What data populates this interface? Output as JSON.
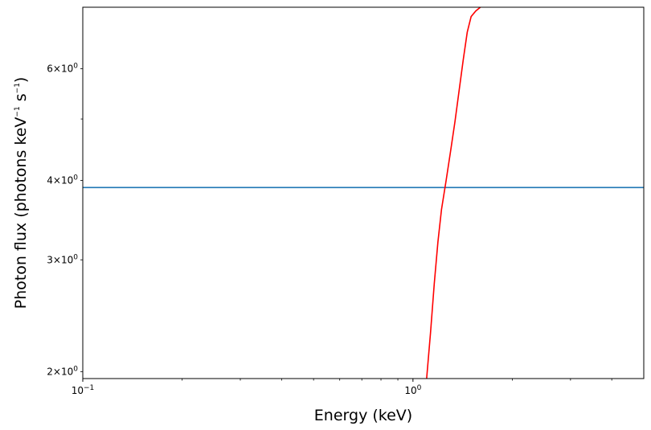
{
  "chart_data": {
    "type": "line",
    "title": "",
    "xlabel": "Energy (keV)",
    "ylabel": "Photon flux (photons keV",
    "ylabel_mid": " s",
    "ylabel_end": ")",
    "ylabel_sup": "−1",
    "xscale": "log",
    "yscale": "log",
    "xlim": [
      0.1,
      5.0
    ],
    "ylim": [
      1.95,
      7.5
    ],
    "grid": false,
    "x_ticks_major": [
      {
        "value": 0.1,
        "base": "10",
        "exp": "−1"
      },
      {
        "value": 1.0,
        "base": "10",
        "exp": "0"
      }
    ],
    "x_ticks_minor": [
      0.2,
      0.3,
      0.4,
      0.5,
      0.6,
      0.7,
      0.8,
      0.9,
      2,
      3,
      4
    ],
    "y_ticks_labeled": [
      {
        "value": 2,
        "mant": "2",
        "exp": "0"
      },
      {
        "value": 3,
        "mant": "3",
        "exp": "0"
      },
      {
        "value": 4,
        "mant": "4",
        "exp": "0"
      },
      {
        "value": 6,
        "mant": "6",
        "exp": "0"
      }
    ],
    "y_ticks_minor": [
      5
    ],
    "series": [
      {
        "color": "#1f77b4",
        "x": [
          0.1,
          5.0
        ],
        "y": [
          3.9,
          3.9
        ]
      },
      {
        "color": "#ff0000",
        "x": [
          1.1,
          1.13,
          1.16,
          1.19,
          1.22,
          1.26,
          1.3,
          1.34,
          1.38,
          1.42,
          1.46,
          1.5,
          1.55,
          1.6
        ],
        "y": [
          1.95,
          2.3,
          2.75,
          3.2,
          3.6,
          4.0,
          4.45,
          4.95,
          5.55,
          6.2,
          6.85,
          7.25,
          7.4,
          7.5
        ]
      }
    ]
  }
}
